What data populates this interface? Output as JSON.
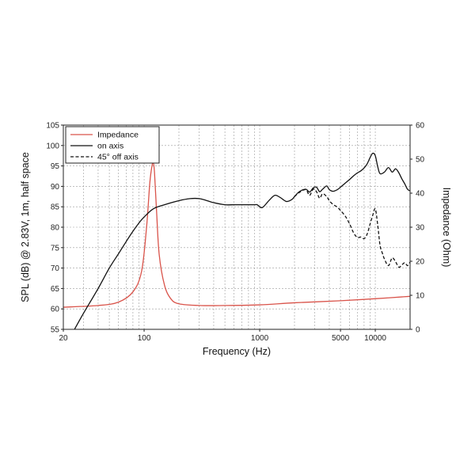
{
  "chart_data": {
    "type": "line",
    "xlabel": "Frequency (Hz)",
    "ylabel_left": "SPL (dB) @ 2.83V, 1m, half space",
    "ylabel_right": "Impedance (Ohm)",
    "x_scale": "log",
    "xlim": [
      20,
      20000
    ],
    "ylim_left": [
      55,
      105
    ],
    "ylim_right": [
      0,
      60
    ],
    "x_tick_values": [
      20,
      100,
      1000,
      5000,
      10000
    ],
    "x_tick_labels": [
      "20",
      "100",
      "1000",
      "5000",
      "10000"
    ],
    "y_left_ticks": [
      "55",
      "60",
      "65",
      "70",
      "75",
      "80",
      "85",
      "90",
      "95",
      "100",
      "105"
    ],
    "y_right_ticks": [
      "0",
      "10",
      "20",
      "30",
      "40",
      "50",
      "60"
    ],
    "grid": true,
    "legend_position": "top-left",
    "series": [
      {
        "name": "Impedance",
        "axis": "right",
        "color": "#d9534a",
        "dash": "solid",
        "x": [
          20,
          40,
          60,
          80,
          95,
          105,
          112,
          117,
          120,
          123,
          128,
          135,
          150,
          170,
          200,
          300,
          500,
          1000,
          2000,
          5000,
          10000,
          20000
        ],
        "y": [
          6.5,
          7,
          8,
          11,
          17,
          30,
          43,
          48,
          49,
          46,
          35,
          22,
          13,
          9,
          7.5,
          7,
          7,
          7.2,
          7.8,
          8.4,
          9,
          9.7
        ]
      },
      {
        "name": "on axis",
        "axis": "left",
        "color": "#111111",
        "dash": "solid",
        "x": [
          25,
          30,
          40,
          50,
          60,
          70,
          80,
          90,
          100,
          120,
          150,
          200,
          250,
          300,
          350,
          400,
          500,
          600,
          700,
          800,
          900,
          950,
          1050,
          1200,
          1350,
          1500,
          1700,
          1900,
          2000,
          2200,
          2500,
          2700,
          2900,
          3100,
          3300,
          3500,
          3800,
          4000,
          4300,
          4700,
          5000,
          5500,
          6000,
          6500,
          7000,
          7500,
          8000,
          8500,
          9000,
          9500,
          10000,
          10500,
          11000,
          12000,
          13000,
          14000,
          15000,
          16000,
          17000,
          18000,
          19000,
          20000
        ],
        "y": [
          55,
          59,
          65,
          70,
          73.5,
          76.5,
          79,
          81,
          82.5,
          84.5,
          85.5,
          86.5,
          87,
          87,
          86.5,
          86,
          85.5,
          85.5,
          85.5,
          85.5,
          85.5,
          85.5,
          84.8,
          86.5,
          87.8,
          87.3,
          86.3,
          86.8,
          87.5,
          88.7,
          89.3,
          88.6,
          89.6,
          89.8,
          88.7,
          89.3,
          90.1,
          89.2,
          88.8,
          89.2,
          89.8,
          90.8,
          91.7,
          92.6,
          93.3,
          93.8,
          94.5,
          95.5,
          97,
          98.1,
          97.5,
          94.8,
          93.1,
          93.5,
          94.6,
          93.5,
          94.3,
          93.3,
          91.8,
          90.6,
          89.3,
          88.9
        ]
      },
      {
        "name": "45° off axis",
        "axis": "left",
        "color": "#111111",
        "dash": "dashed",
        "x": [
          2000,
          2200,
          2500,
          2700,
          2900,
          3100,
          3300,
          3500,
          3800,
          4000,
          4300,
          4700,
          5000,
          5500,
          6000,
          6500,
          7000,
          7500,
          8000,
          8500,
          9000,
          9500,
          10000,
          10500,
          11000,
          11500,
          12000,
          13000,
          14000,
          15000,
          16000,
          17000,
          18000,
          19000,
          20000
        ],
        "y": [
          87.5,
          88.5,
          89.2,
          87.8,
          89.3,
          88.7,
          87.1,
          88.2,
          87.5,
          86.5,
          85.6,
          84.9,
          84.1,
          82.7,
          80.8,
          78.6,
          77.5,
          77.6,
          77.2,
          78.3,
          80.7,
          82.9,
          84.5,
          80.5,
          75.5,
          73.7,
          72.2,
          70.6,
          72.5,
          71.5,
          70.2,
          70.8,
          71.3,
          70.6,
          71.5
        ]
      }
    ]
  }
}
